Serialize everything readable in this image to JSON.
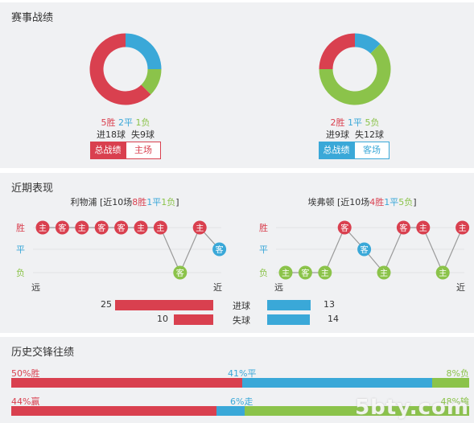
{
  "section1": {
    "title": "赛事战绩",
    "left": {
      "win": "5胜",
      "draw": "2平",
      "loss": "1负",
      "goals": "进18球  失9球",
      "results": {
        "win": 5,
        "draw": 2,
        "loss": 1
      },
      "tabs": [
        "总战绩",
        "主场"
      ]
    },
    "right": {
      "win": "2胜",
      "draw": "1平",
      "loss": "5负",
      "goals": "进9球  失12球",
      "results": {
        "win": 2,
        "draw": 1,
        "loss": 5
      },
      "tabs": [
        "总战绩",
        "客场"
      ]
    },
    "colors": {
      "win": "#d9404f",
      "draw": "#3aa8d8",
      "loss": "#8bc34a"
    }
  },
  "section2": {
    "title": "近期表现",
    "left_team": {
      "name": "利物浦",
      "summary_prefix": "[近10场",
      "win": "8胜",
      "draw": "1平",
      "loss": "1负",
      "summary_suffix": "]",
      "matches": [
        {
          "venue": "主",
          "result": "胜"
        },
        {
          "venue": "客",
          "result": "胜"
        },
        {
          "venue": "主",
          "result": "胜"
        },
        {
          "venue": "客",
          "result": "胜"
        },
        {
          "venue": "客",
          "result": "胜"
        },
        {
          "venue": "主",
          "result": "胜"
        },
        {
          "venue": "主",
          "result": "胜"
        },
        {
          "venue": "客",
          "result": "负"
        },
        {
          "venue": "主",
          "result": "胜"
        },
        {
          "venue": "客",
          "result": "平"
        }
      ]
    },
    "right_team": {
      "name": "埃弗顿",
      "summary_prefix": "[近10场",
      "win": "4胜",
      "draw": "1平",
      "loss": "5负",
      "summary_suffix": "]",
      "matches": [
        {
          "venue": "主",
          "result": "负"
        },
        {
          "venue": "客",
          "result": "负"
        },
        {
          "venue": "主",
          "result": "负"
        },
        {
          "venue": "客",
          "result": "胜"
        },
        {
          "venue": "客",
          "result": "平"
        },
        {
          "venue": "主",
          "result": "负"
        },
        {
          "venue": "客",
          "result": "胜"
        },
        {
          "venue": "主",
          "result": "胜"
        },
        {
          "venue": "主",
          "result": "负"
        },
        {
          "venue": "主",
          "result": "胜"
        }
      ]
    },
    "row_labels": [
      "胜",
      "平",
      "负"
    ],
    "axis_far": "远",
    "axis_near": "近",
    "goals_scored": {
      "label": "进球",
      "left": "25",
      "right": "13",
      "left_value": 25,
      "right_value": 13
    },
    "goals_conceded": {
      "label": "失球",
      "left": "10",
      "right": "14",
      "left_value": 10,
      "right_value": 14
    }
  },
  "section3": {
    "title": "历史交锋往绩",
    "row1": {
      "left": "50%胜",
      "mid": "41%平",
      "right": "8%负",
      "values": [
        50,
        41,
        8
      ]
    },
    "row2": {
      "left": "44%赢",
      "mid": "6%走",
      "right": "48%输",
      "values": [
        44,
        6,
        48
      ]
    }
  },
  "watermark": "5bty.com"
}
